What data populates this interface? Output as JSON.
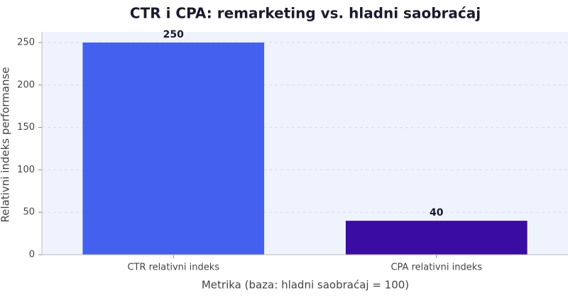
{
  "chart_data": {
    "type": "bar",
    "title": "CTR i CPA: remarketing vs. hladni saobraćaj",
    "x_label": "Metrika (baza: hladni saobraćaj = 100)",
    "y_label": "Relativni indeks performanse",
    "categories": [
      "CTR relativni indeks",
      "CPA relativni indeks"
    ],
    "values": [
      250,
      40
    ],
    "colors": [
      "#4361ee",
      "#3a0ca3"
    ],
    "ylim": [
      0,
      262.5
    ],
    "yticks": [
      0,
      50,
      100,
      150,
      200,
      250
    ],
    "grid": true
  }
}
